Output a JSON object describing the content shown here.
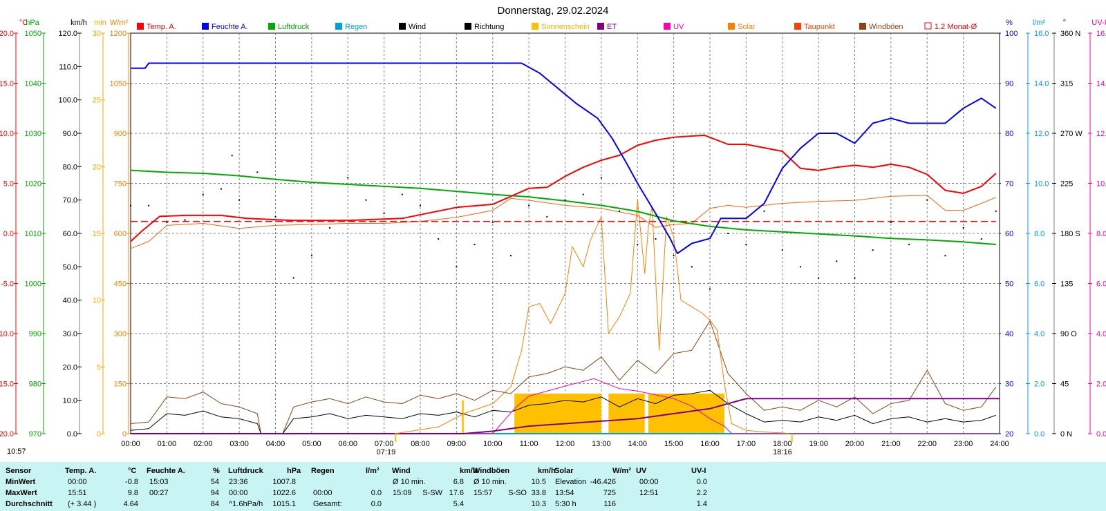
{
  "chart_data": {
    "type": "line",
    "title": "Donnerstag, 29.02.2024",
    "x_ticks": [
      "00:00",
      "01:00",
      "02:00",
      "03:00",
      "04:00",
      "05:00",
      "06:00",
      "07:00",
      "08:00",
      "09:00",
      "10:00",
      "11:00",
      "12:00",
      "13:00",
      "14:00",
      "15:00",
      "16:00",
      "17:00",
      "18:00",
      "19:00",
      "20:00",
      "21:00",
      "22:00",
      "23:00",
      "24:00"
    ],
    "xlim_hours": [
      0,
      24
    ],
    "sunrise": "07:19",
    "sunset": "18:16",
    "left_time_label": "10:57",
    "grid": true,
    "legend_position": "top",
    "legend": [
      {
        "label": "Temp. A.",
        "color": "#ff0000"
      },
      {
        "label": "Feuchte A.",
        "color": "#0000ff"
      },
      {
        "label": "Luftdruck",
        "color": "#00aa00"
      },
      {
        "label": "Regen",
        "color": "#00a0e0"
      },
      {
        "label": "Wind",
        "color": "#000000"
      },
      {
        "label": "Richtung",
        "color": "#000000"
      },
      {
        "label": "Sonnenschein",
        "color": "#ffc000"
      },
      {
        "label": "ET",
        "color": "#800080"
      },
      {
        "label": "UV",
        "color": "#ff00aa"
      },
      {
        "label": "Solar",
        "color": "#ff8000"
      },
      {
        "label": "Taupunkt",
        "color": "#ff4000"
      },
      {
        "label": "Windböen",
        "color": "#8b4513"
      },
      {
        "label": "1.2 Monat-Ø",
        "color": "#ff0000"
      }
    ],
    "axes": [
      {
        "unit": "°C",
        "color": "#ff0000",
        "ticks": [
          "20.0",
          "15.0",
          "10.0",
          "5.0",
          "0.0",
          "-5.0",
          "-10.0",
          "-15.0",
          "-20.0"
        ],
        "range": [
          -20,
          20
        ]
      },
      {
        "unit": "hPa",
        "color": "#00aa00",
        "ticks": [
          "1050",
          "1040",
          "1030",
          "1020",
          "1010",
          "1000",
          "990",
          "980",
          "970"
        ],
        "range": [
          970,
          1050
        ]
      },
      {
        "unit": "km/h",
        "color": "#000000",
        "ticks": [
          "120.0",
          "110.0",
          "100.0",
          "90.0",
          "80.0",
          "70.0",
          "60.0",
          "50.0",
          "40.0",
          "30.0",
          "20.0",
          "10.0",
          "0.0"
        ],
        "range": [
          0,
          120
        ]
      },
      {
        "unit": "min",
        "color": "#ffa500",
        "ticks": [
          "30",
          "25",
          "20",
          "15",
          "10",
          "5",
          "0"
        ],
        "range": [
          0,
          30
        ]
      },
      {
        "unit": "W/m²",
        "color": "#ff8000",
        "ticks": [
          "1200",
          "1050",
          "900",
          "750",
          "600",
          "450",
          "300",
          "150",
          "0"
        ],
        "range": [
          0,
          1200
        ]
      },
      {
        "unit": "%",
        "color": "#0000ff",
        "ticks": [
          "100",
          "90",
          "80",
          "70",
          "60",
          "50",
          "40",
          "30",
          "20"
        ],
        "range": [
          20,
          100
        ]
      },
      {
        "unit": "l/m²",
        "color": "#00a0e0",
        "ticks": [
          "16.0",
          "14.0",
          "12.0",
          "10.0",
          "8.0",
          "6.0",
          "4.0",
          "2.0",
          "0.0"
        ],
        "range": [
          0,
          16
        ]
      },
      {
        "unit": "°",
        "color": "#000000",
        "ticks": [
          "360 N",
          "315",
          "270 W",
          "225",
          "180 S",
          "135",
          "90 O",
          "45",
          "0 N"
        ],
        "range": [
          0,
          360
        ]
      },
      {
        "unit": "UV-I",
        "color": "#ff00aa",
        "ticks": [
          "16.0",
          "14.0",
          "12.0",
          "10.0",
          "8.0",
          "6.0",
          "4.0",
          "2.0",
          "0.0"
        ],
        "range": [
          0,
          16
        ]
      }
    ],
    "series": [
      {
        "name": "Temp. A.",
        "axis": "°C",
        "color": "#ff0000",
        "x": [
          0,
          0.3,
          0.8,
          1.5,
          2.5,
          3.2,
          4.5,
          6,
          7.5,
          9,
          10,
          11,
          11.5,
          12,
          12.5,
          13,
          13.5,
          14,
          14.5,
          15,
          15.85,
          16.5,
          17,
          18,
          18.5,
          19,
          19.5,
          20,
          20.5,
          21,
          21.5,
          22,
          22.5,
          23,
          23.5,
          23.9
        ],
        "y": [
          -0.8,
          0.2,
          1.7,
          1.8,
          1.8,
          1.5,
          1.3,
          1.3,
          1.5,
          2.6,
          2.9,
          4.5,
          4.6,
          5.7,
          6.6,
          7.3,
          7.8,
          8.8,
          9.3,
          9.6,
          9.8,
          8.9,
          8.9,
          8.2,
          6.5,
          6.3,
          6.6,
          6.8,
          6.6,
          6.9,
          6.6,
          5.9,
          4.3,
          4.0,
          4.7,
          6.0
        ]
      },
      {
        "name": "Taupunkt",
        "axis": "°C",
        "color": "#ff6010",
        "x": [
          0,
          0.5,
          1,
          2,
          3,
          4,
          5,
          6,
          7,
          8,
          9,
          10,
          10.5,
          11,
          12,
          13,
          14,
          14.5,
          15,
          15.5,
          16,
          16.5,
          17,
          18,
          19,
          20,
          21,
          22,
          22.5,
          23,
          23.5,
          23.9
        ],
        "y": [
          -1.5,
          -0.8,
          0.8,
          1.0,
          0.5,
          0.8,
          0.9,
          1.0,
          1.0,
          1.2,
          1.6,
          2.3,
          3.5,
          3.3,
          2.8,
          2.5,
          1.8,
          0.6,
          0.9,
          1.0,
          2.5,
          2.8,
          2.6,
          3.0,
          3.2,
          3.3,
          3.7,
          3.8,
          2.3,
          2.3,
          3.0,
          3.6
        ]
      },
      {
        "name": "Feuchte A.",
        "axis": "%",
        "color": "#0000ff",
        "x": [
          0,
          0.4,
          0.5,
          10.8,
          11.3,
          11.8,
          12.3,
          12.9,
          13.3,
          13.7,
          14.0,
          14.5,
          14.9,
          15.1,
          15.5,
          16.0,
          16.3,
          17.0,
          17.5,
          18.0,
          18.5,
          19.0,
          19.5,
          20.0,
          20.5,
          21.0,
          21.5,
          22.0,
          22.5,
          23.0,
          23.5,
          23.9
        ],
        "y": [
          93,
          93,
          94,
          94,
          92,
          89,
          86,
          83,
          79,
          74,
          70,
          64,
          59,
          56,
          58,
          59,
          63,
          63,
          66,
          73,
          77,
          80,
          80,
          78,
          82,
          83,
          82,
          82,
          82,
          85,
          87,
          85
        ]
      },
      {
        "name": "Luftdruck",
        "axis": "hPa",
        "color": "#00aa00",
        "x": [
          0,
          1,
          2,
          3,
          4,
          5,
          6,
          7,
          8,
          9,
          10,
          11,
          12,
          13,
          14,
          15,
          16,
          17,
          18,
          19,
          20,
          21,
          22,
          23,
          23.9
        ],
        "y": [
          1022.6,
          1022.2,
          1022.0,
          1021.5,
          1020.8,
          1020.2,
          1019.8,
          1019.4,
          1019.0,
          1018.4,
          1017.8,
          1017.3,
          1016.5,
          1015.6,
          1014.4,
          1012.5,
          1011.4,
          1010.7,
          1010.3,
          1009.9,
          1009.5,
          1009.0,
          1008.7,
          1008.3,
          1007.8
        ]
      },
      {
        "name": "1.2 Monat-Ø",
        "axis": "°C",
        "color": "#ff0000",
        "x": [
          0,
          23.9
        ],
        "y": [
          1.2,
          1.2
        ]
      },
      {
        "name": "Solar",
        "axis": "W/m²",
        "color": "#ff8000",
        "x": [
          7.3,
          8.5,
          9.2,
          10.0,
          10.5,
          10.8,
          11.0,
          11.3,
          11.6,
          12.0,
          12.2,
          12.5,
          12.7,
          13.0,
          13.2,
          13.5,
          13.8,
          14.0,
          14.2,
          14.3,
          14.4,
          14.6,
          14.8,
          15.0,
          15.2,
          15.5,
          15.8,
          16.0,
          16.2,
          16.4,
          16.6,
          17.0,
          17.5,
          18.0,
          18.2
        ],
        "y": [
          0,
          20,
          60,
          90,
          140,
          250,
          380,
          390,
          330,
          420,
          560,
          500,
          580,
          650,
          300,
          350,
          420,
          700,
          480,
          620,
          680,
          250,
          650,
          590,
          400,
          380,
          360,
          340,
          310,
          150,
          30,
          10,
          5,
          2,
          0
        ]
      },
      {
        "name": "UV",
        "axis": "UV-I",
        "color": "#ff00aa",
        "x": [
          0,
          10.0,
          10.3,
          10.6,
          11.0,
          12.0,
          12.8,
          13.5,
          14.0,
          15.0,
          15.5,
          16.0,
          16.4,
          16.6,
          24.0
        ],
        "y": [
          0,
          0,
          0.5,
          1.0,
          1.5,
          1.9,
          2.2,
          1.8,
          1.7,
          1.4,
          1.1,
          0.6,
          0.3,
          0,
          0
        ]
      },
      {
        "name": "ET",
        "axis": "l/m²",
        "color": "#800080",
        "x": [
          0,
          9.2,
          10.0,
          11.0,
          12.0,
          13.0,
          14.0,
          15.0,
          16.0,
          16.5,
          17.0,
          24.0
        ],
        "y": [
          0,
          0,
          0.1,
          0.3,
          0.4,
          0.5,
          0.6,
          0.8,
          1.0,
          1.2,
          1.4,
          1.4
        ]
      },
      {
        "name": "Sonnenschein",
        "axis": "min",
        "color": "#ffc000",
        "x": [
          9.15,
          9.2,
          10.6,
          13.0,
          13.2,
          14.2,
          14.3,
          16.4
        ],
        "y": [
          2.5,
          2.5,
          3.0,
          3.0,
          3.0,
          3.0,
          3.0,
          3.0
        ]
      },
      {
        "name": "Regen",
        "axis": "l/m²",
        "color": "#00a0e0",
        "x": [
          0,
          24
        ],
        "y": [
          0,
          0
        ]
      },
      {
        "name": "Wind",
        "axis": "km/h",
        "color": "#000000",
        "x": [
          0,
          0.5,
          1.0,
          1.5,
          2.0,
          2.5,
          3.0,
          3.5,
          3.6,
          4.2,
          4.5,
          5.0,
          5.5,
          6.0,
          6.5,
          7.0,
          7.5,
          8.0,
          8.5,
          9.0,
          9.5,
          10.0,
          10.5,
          11.0,
          11.5,
          12.0,
          12.5,
          13.0,
          13.5,
          14.0,
          14.5,
          15.0,
          15.5,
          16.0,
          16.5,
          17.0,
          17.5,
          18.0,
          18.5,
          19.0,
          19.5,
          20.0,
          20.5,
          21.0,
          21.5,
          22.0,
          22.5,
          23.0,
          23.5,
          23.9
        ],
        "y": [
          1.0,
          1.5,
          6.0,
          5.5,
          6.8,
          5.0,
          4.5,
          3.0,
          0,
          0,
          4.5,
          5.0,
          6.0,
          4.5,
          5.5,
          5.0,
          4.5,
          6.0,
          5.5,
          6.5,
          5.0,
          7.0,
          6.5,
          8.5,
          9.0,
          10.0,
          9.5,
          11.0,
          8.0,
          10.5,
          9.0,
          11.5,
          12.0,
          13.0,
          9.0,
          6.0,
          3.5,
          4.0,
          3.5,
          5.0,
          4.0,
          5.5,
          3.0,
          4.5,
          5.0,
          3.5,
          4.5,
          3.5,
          4.0,
          5.5
        ]
      },
      {
        "name": "Windböen",
        "axis": "km/h",
        "color": "#8b4513",
        "x": [
          0,
          0.5,
          1.0,
          1.5,
          2.0,
          2.5,
          3.0,
          3.5,
          3.6,
          4.2,
          4.5,
          5.0,
          5.5,
          6.0,
          6.5,
          7.0,
          7.5,
          8.0,
          8.5,
          9.0,
          9.5,
          10.0,
          10.5,
          11.0,
          11.5,
          12.0,
          12.5,
          13.0,
          13.5,
          14.0,
          14.5,
          15.0,
          15.5,
          16.0,
          16.5,
          17.0,
          17.5,
          18.0,
          18.5,
          19.0,
          19.5,
          20.0,
          20.5,
          21.0,
          21.5,
          22.0,
          22.5,
          23.0,
          23.5,
          23.9
        ],
        "y": [
          3.0,
          3.5,
          11.0,
          10.5,
          12.5,
          9.0,
          8.0,
          6.0,
          0,
          0,
          8.0,
          9.5,
          10.5,
          9.0,
          11.0,
          9.5,
          9.0,
          11.5,
          10.5,
          12.0,
          10.0,
          13.0,
          12.0,
          17.0,
          18.0,
          20.0,
          19.0,
          23.0,
          16.0,
          22.0,
          18.0,
          24.0,
          25.0,
          33.8,
          18.0,
          12.0,
          7.0,
          8.0,
          7.0,
          10.0,
          8.0,
          11.0,
          6.0,
          9.0,
          10.0,
          19.0,
          9.0,
          7.0,
          8.0,
          14.0
        ]
      }
    ],
    "richtung_points": [
      [
        0,
        205
      ],
      [
        0.5,
        205
      ],
      [
        1,
        190
      ],
      [
        1.5,
        192
      ],
      [
        2,
        215
      ],
      [
        2.5,
        220
      ],
      [
        2.8,
        250
      ],
      [
        3,
        210
      ],
      [
        3.5,
        235
      ],
      [
        4,
        195
      ],
      [
        4.5,
        140
      ],
      [
        5,
        160
      ],
      [
        5.5,
        185
      ],
      [
        6,
        230
      ],
      [
        6.5,
        210
      ],
      [
        7,
        198
      ],
      [
        7.5,
        215
      ],
      [
        8,
        205
      ],
      [
        8.5,
        175
      ],
      [
        9,
        150
      ],
      [
        9.5,
        170
      ],
      [
        10,
        190
      ],
      [
        10.5,
        160
      ],
      [
        11,
        205
      ],
      [
        11.5,
        195
      ],
      [
        12,
        210
      ],
      [
        12.5,
        215
      ],
      [
        13,
        230
      ],
      [
        13.5,
        200
      ],
      [
        14,
        170
      ],
      [
        14.5,
        175
      ],
      [
        15,
        160
      ],
      [
        15.5,
        150
      ],
      [
        16,
        130
      ],
      [
        16.5,
        180
      ],
      [
        17,
        170
      ],
      [
        17.5,
        200
      ],
      [
        18,
        165
      ],
      [
        18.5,
        150
      ],
      [
        19,
        140
      ],
      [
        19.5,
        155
      ],
      [
        20,
        140
      ],
      [
        20.5,
        165
      ],
      [
        21,
        190
      ],
      [
        21.5,
        170
      ],
      [
        22,
        210
      ],
      [
        22.5,
        160
      ],
      [
        23,
        185
      ],
      [
        23.5,
        175
      ],
      [
        23.9,
        200
      ]
    ]
  },
  "summary": {
    "col_headers": [
      "Sensor",
      "Temp. A.",
      "°C",
      "Feuchte A.",
      "%",
      "Luftdruck",
      "hPa",
      "Regen",
      "l/m²",
      "Wind",
      "km/h",
      "Windböen",
      "km/h",
      "Solar",
      "W/m²",
      "UV",
      "UV-I"
    ],
    "rows": [
      {
        "label": "MinWert",
        "temp_time": "00:00",
        "temp_val": "-0.8",
        "hum_time": "15:03",
        "hum_val": "54",
        "press_time": "23:36",
        "press_val": "1007.8",
        "rain_time": "",
        "rain_val": "",
        "wind_label": "Ø 10 min.",
        "wind_dir": "",
        "wind_val": "6.8",
        "gust_label": "Ø 10 min.",
        "gust_dir": "",
        "gust_val": "10.5",
        "solar_label": "Elevation",
        "solar_val": "-46.426",
        "uv_time": "00:00",
        "uv_val": "0.0"
      },
      {
        "label": "MaxWert",
        "temp_time": "15:51",
        "temp_val": "9.8",
        "hum_time": "00:27",
        "hum_val": "94",
        "press_time": "00:00",
        "press_val": "1022.6",
        "rain_time": "00:00",
        "rain_val": "0.0",
        "wind_label": "15:09",
        "wind_dir": "S-SW",
        "wind_val": "17.6",
        "gust_label": "15:57",
        "gust_dir": "S-SO",
        "gust_val": "33.8",
        "solar_label": "13:54",
        "solar_val": "725",
        "uv_time": "12:51",
        "uv_val": "2.2"
      },
      {
        "label": "Durchschnitt",
        "temp_time": "(+ 3.44 )",
        "temp_val": "4.64",
        "hum_time": "",
        "hum_val": "84",
        "press_time": "^1.6hPa/h",
        "press_val": "1015.1",
        "rain_time": "Gesamt:",
        "rain_val": "0.0",
        "wind_label": "",
        "wind_dir": "",
        "wind_val": "5.4",
        "gust_label": "",
        "gust_dir": "",
        "gust_val": "10.3",
        "solar_label": "5:30 h",
        "solar_val": "116",
        "uv_time": "",
        "uv_val": "1.4"
      }
    ]
  }
}
